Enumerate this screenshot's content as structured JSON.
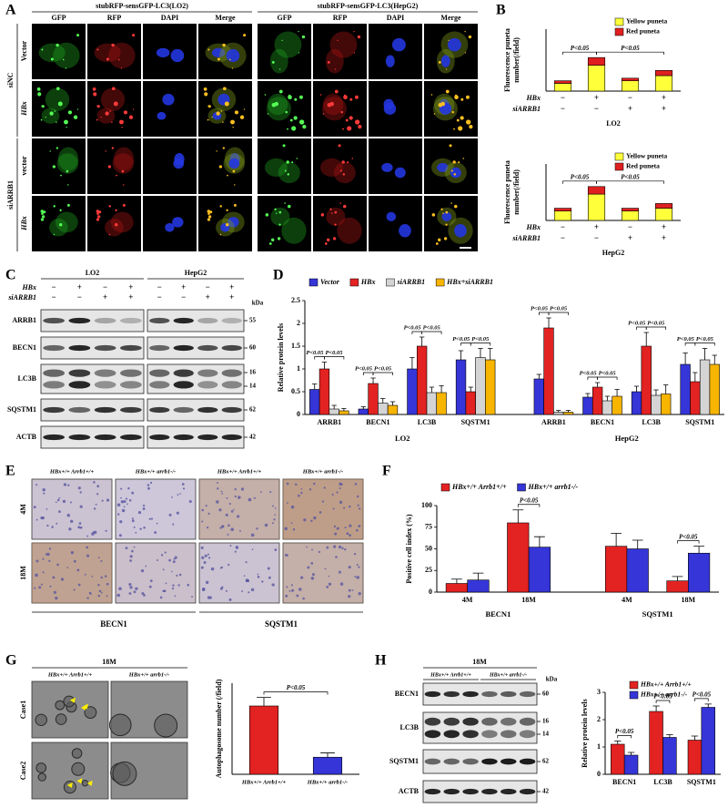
{
  "panel_labels": [
    "A",
    "B",
    "C",
    "D",
    "E",
    "F",
    "G",
    "H"
  ],
  "panel_a": {
    "groups": [
      "stubRFP-sensGFP-LC3(LO2)",
      "stubRFP-sensGFP-LC3(HepG2)"
    ],
    "channels": [
      "GFP",
      "RFP",
      "DAPI",
      "Merge",
      "GFP",
      "RFP",
      "DAPI",
      "Merge"
    ],
    "row_groups": [
      "siNC",
      "siARRB1"
    ],
    "rows": [
      "Vector",
      "HBx",
      "vector",
      "HBx"
    ]
  },
  "panel_c": {
    "cell_lines": [
      "LO2",
      "HepG2"
    ],
    "x_rows": [
      {
        "label": "HBx",
        "signs": [
          "−",
          "+",
          "−",
          "+",
          "−",
          "+",
          "−",
          "+"
        ]
      },
      {
        "label": "siARRB1",
        "signs": [
          "−",
          "−",
          "+",
          "+",
          "−",
          "−",
          "+",
          "+"
        ]
      }
    ],
    "unit": "kDa",
    "proteins": [
      "ARRB1",
      "BECN1",
      "LC3B",
      "SQSTM1",
      "ACTB"
    ],
    "markers": [
      "55",
      "60",
      "16",
      "14",
      "62",
      "42"
    ]
  },
  "panel_e": {
    "genotypes": [
      "HBx+/+ Arrb1+/+",
      "HBx+/+ arrb1-/-",
      "HBx+/+ Arrb1+/+",
      "HBx+/+ arrb1-/-"
    ],
    "rows": [
      "4M",
      "18M"
    ],
    "stains": [
      "BECN1",
      "SQSTM1"
    ]
  },
  "panel_g": {
    "time": "18M",
    "genotypes": [
      "HBx+/+ Arrb1+/+",
      "HBx+/+ arrb1-/-"
    ],
    "rows": [
      "Case1",
      "Case2"
    ]
  },
  "panel_h": {
    "time": "18M",
    "genotypes": [
      "HBx+/+ Arrb1+/+",
      "HBx+/+ arrb1-/-"
    ],
    "unit": "kDa",
    "proteins": [
      "BECN1",
      "LC3B",
      "SQSTM1",
      "ACTB"
    ],
    "markers": [
      "60",
      "16",
      "14",
      "62",
      "42"
    ]
  },
  "chart_data": [
    {
      "type": "bar",
      "stacked": true,
      "ylabel": [
        "Fluorescence puneta",
        "number(/field)"
      ],
      "xlabel": "LO2",
      "categories": [
        null,
        null,
        null,
        null
      ],
      "x_rows": [
        {
          "label": "HBx",
          "signs": [
            "−",
            "+",
            "−",
            "+"
          ]
        },
        {
          "label": "siARRB1",
          "signs": [
            "−",
            "−",
            "+",
            "+"
          ]
        }
      ],
      "series": [
        {
          "name": "Yellow puneta",
          "color": "#ffff3a",
          "values": [
            3,
            10,
            4,
            6
          ]
        },
        {
          "name": "Red puneta",
          "color": "#e02020",
          "values": [
            1,
            3,
            1,
            2
          ]
        }
      ],
      "ylim": [
        0,
        24
      ],
      "legend": "upper-right",
      "annotations": [
        "P<0.05",
        "P<0.05"
      ]
    },
    {
      "type": "bar",
      "stacked": true,
      "ylabel": [
        "Fluorescence puneta",
        "number(/field)"
      ],
      "xlabel": "HepG2",
      "categories": [
        null,
        null,
        null,
        null
      ],
      "x_rows": [
        {
          "label": "HBx",
          "signs": [
            "−",
            "+",
            "−",
            "+"
          ]
        },
        {
          "label": "siARRB1",
          "signs": [
            "−",
            "−",
            "+",
            "+"
          ]
        }
      ],
      "series": [
        {
          "name": "Yellow puneta",
          "color": "#ffff3a",
          "values": [
            5,
            14,
            5,
            6.5
          ]
        },
        {
          "name": "Red puneta",
          "color": "#e02020",
          "values": [
            1.5,
            4,
            1.5,
            2.5
          ]
        }
      ],
      "ylim": [
        0,
        30
      ],
      "legend": "upper-right",
      "annotations": [
        "P<0.05",
        "P<0.05"
      ]
    },
    {
      "type": "bar",
      "ylabel": "Relative protein levels",
      "categories": [
        "ARRB1",
        "BECN1",
        "LC3B",
        "SQSTM1",
        "ARRB1",
        "BECN1",
        "LC3B",
        "SQSTM1"
      ],
      "group_labels": [
        "LO2",
        "HepG2"
      ],
      "series": [
        {
          "name": "Vector",
          "color": "#3535d8",
          "values": [
            0.55,
            0.12,
            1.0,
            1.2,
            0.78,
            0.38,
            0.5,
            1.1
          ],
          "errors": [
            0.12,
            0.05,
            0.25,
            0.2,
            0.1,
            0.08,
            0.12,
            0.25
          ]
        },
        {
          "name": "HBx",
          "color": "#e32222",
          "values": [
            1.0,
            0.68,
            1.5,
            0.5,
            1.9,
            0.6,
            1.5,
            0.72
          ],
          "errors": [
            0.15,
            0.12,
            0.2,
            0.1,
            0.22,
            0.1,
            0.3,
            0.2
          ]
        },
        {
          "name": "siARRB1",
          "color": "#d4d4d4",
          "values": [
            0.12,
            0.25,
            0.48,
            1.25,
            0.05,
            0.3,
            0.42,
            1.2
          ],
          "errors": [
            0.08,
            0.1,
            0.12,
            0.2,
            0.04,
            0.1,
            0.12,
            0.25
          ]
        },
        {
          "name": "HBx+siARRB1",
          "color": "#f7b500",
          "values": [
            0.08,
            0.2,
            0.48,
            1.2,
            0.05,
            0.4,
            0.45,
            1.1
          ],
          "errors": [
            0.05,
            0.08,
            0.15,
            0.25,
            0.04,
            0.15,
            0.2,
            0.2
          ]
        }
      ],
      "ylim": [
        0,
        2.5
      ],
      "yticks": [
        0,
        0.5,
        1,
        1.5,
        2,
        2.5
      ],
      "legend": "top",
      "annotations": [
        "P<0.05",
        "P<0.05",
        "P<0.05",
        "P<0.05",
        "P<0.05",
        "P<0.05",
        "P<0.05",
        "P<0.05",
        "P<0.05",
        "P<0.05",
        "P<0.05",
        "P<0.05",
        "P<0.05",
        "P<0.05",
        "P<0.05",
        "P<0.05"
      ]
    },
    {
      "type": "bar",
      "ylabel": "Positive cell index (%)",
      "categories": [
        "4M",
        "18M",
        "4M",
        "18M"
      ],
      "group_labels": [
        "BECN1",
        "SQSTM1"
      ],
      "series": [
        {
          "name": "HBx+/+ Arrb1+/+",
          "color": "#e32222",
          "values": [
            10,
            80,
            53,
            13
          ],
          "errors": [
            5,
            15,
            15,
            5
          ]
        },
        {
          "name": "HBx+/+ arrb1-/-",
          "color": "#3535d8",
          "values": [
            14,
            52,
            50,
            45
          ],
          "errors": [
            8,
            12,
            10,
            8
          ]
        }
      ],
      "ylim": [
        0,
        100
      ],
      "yticks": [
        0,
        25,
        50,
        75,
        100
      ],
      "legend": "top",
      "annotations": [
        "P<0.05",
        "P<0.05"
      ]
    },
    {
      "type": "bar",
      "ylabel": "Autophagosome number (/field)",
      "categories": [
        "HBx+/+ Arrb1+/+",
        "HBx+/+ arrb1-/-"
      ],
      "series": [
        {
          "colors": [
            "#e32222",
            "#3535d8"
          ],
          "values": [
            2.4,
            0.6
          ],
          "errors": [
            0.3,
            0.15
          ]
        }
      ],
      "ylim": [
        0,
        3.2
      ],
      "annotations": [
        "P<0.05"
      ]
    },
    {
      "type": "bar",
      "ylabel": "Relative protein levels",
      "categories": [
        "BECN1",
        "LC3B",
        "SQSTM1"
      ],
      "series": [
        {
          "name": "HBx+/+ Arrb1+/+",
          "color": "#e32222",
          "values": [
            1.1,
            2.3,
            1.25
          ],
          "errors": [
            0.12,
            0.2,
            0.15
          ]
        },
        {
          "name": "HBx+/+ arrb1-/-",
          "color": "#3535d8",
          "values": [
            0.7,
            1.35,
            2.45
          ],
          "errors": [
            0.1,
            0.1,
            0.12
          ]
        }
      ],
      "ylim": [
        0,
        3
      ],
      "yticks": [
        0,
        1,
        2,
        3
      ],
      "legend": "upper-right",
      "annotations": [
        "P<0.05",
        "P<0.05",
        "P<0.05"
      ]
    }
  ]
}
